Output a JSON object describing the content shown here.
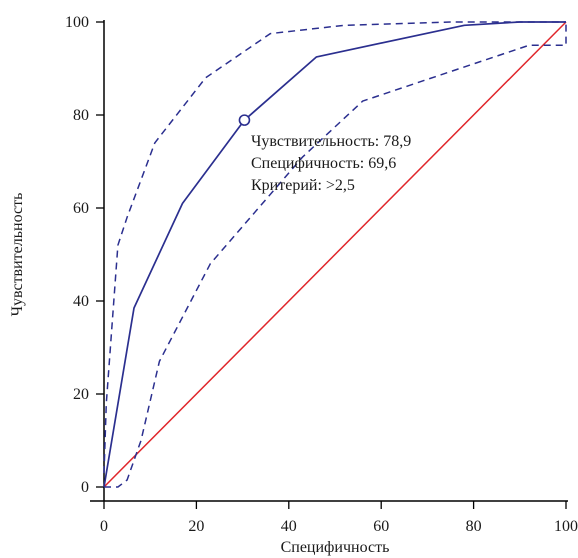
{
  "chart_data": {
    "type": "line",
    "xlabel": "Специфичность",
    "ylabel": "Чувствительность",
    "xlim": [
      0,
      100
    ],
    "ylim": [
      0,
      100
    ],
    "x_ticks": [
      "0",
      "20",
      "40",
      "60",
      "80",
      "100"
    ],
    "y_ticks": [
      "0",
      "20",
      "40",
      "60",
      "80",
      "100"
    ],
    "grid": false,
    "series": [
      {
        "role": "roc-curve",
        "style": "solid",
        "color": "#2b2f8f",
        "points": [
          [
            0,
            0
          ],
          [
            6.5,
            38.5
          ],
          [
            17,
            61
          ],
          [
            30.4,
            78.9
          ],
          [
            46,
            92.5
          ],
          [
            78,
            99.3
          ],
          [
            90,
            100
          ],
          [
            100,
            100
          ]
        ]
      },
      {
        "role": "upper-confidence-bound",
        "style": "dashed",
        "color": "#2b2f8f",
        "points": [
          [
            0,
            3
          ],
          [
            0.5,
            18
          ],
          [
            3,
            52
          ],
          [
            5,
            58
          ],
          [
            11,
            74
          ],
          [
            22,
            88
          ],
          [
            36,
            97.5
          ],
          [
            52,
            99.3
          ],
          [
            75,
            100
          ],
          [
            100,
            100
          ]
        ]
      },
      {
        "role": "lower-confidence-bound",
        "style": "dashed",
        "color": "#2b2f8f",
        "points": [
          [
            0,
            0
          ],
          [
            1.5,
            0
          ],
          [
            3,
            0
          ],
          [
            5,
            1.5
          ],
          [
            8,
            10
          ],
          [
            12,
            27
          ],
          [
            23,
            48
          ],
          [
            43,
            71
          ],
          [
            56,
            83
          ],
          [
            77,
            90
          ],
          [
            92,
            95
          ],
          [
            100,
            95
          ],
          [
            100,
            100
          ]
        ]
      },
      {
        "role": "reference-diagonal",
        "style": "solid",
        "color": "#e0262b",
        "points": [
          [
            0,
            0
          ],
          [
            100,
            100
          ]
        ]
      }
    ],
    "marker": {
      "x": 30.4,
      "y": 78.9
    },
    "annotations": [
      "Чувствительность: 78,9",
      "Специфичность: 69,6",
      "Критерий: >2,5"
    ]
  }
}
